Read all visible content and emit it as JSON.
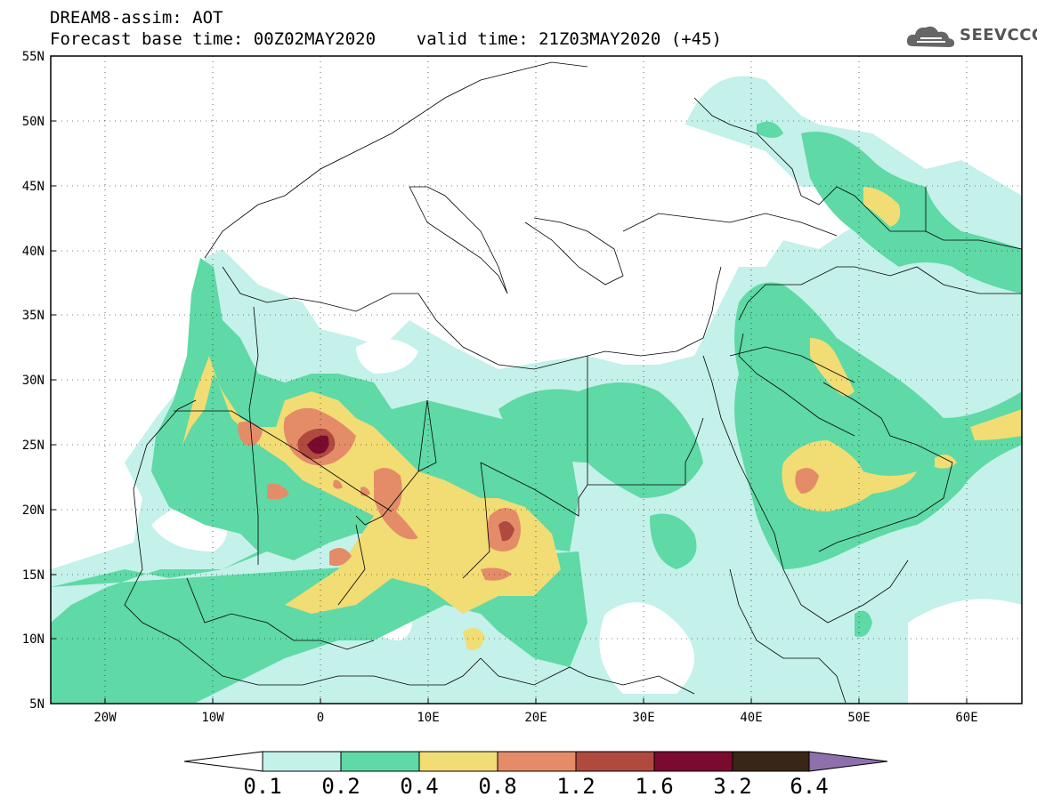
{
  "title": {
    "line1": "DREAM8-assim: AOT",
    "line2": "Forecast base time: 00Z02MAY2020    valid time: 21Z03MAY2020 (+45)"
  },
  "logo": {
    "text": "SEEVCCC",
    "icon": "cloud-icon"
  },
  "map": {
    "lon_range": [
      -25,
      65
    ],
    "lat_range": [
      5,
      55
    ],
    "lon_ticks": [
      "20W",
      "10W",
      "0",
      "10E",
      "20E",
      "30E",
      "40E",
      "50E",
      "60E"
    ],
    "lat_ticks": [
      "5N",
      "10N",
      "15N",
      "20N",
      "25N",
      "30N",
      "35N",
      "40N",
      "45N",
      "50N",
      "55N"
    ]
  },
  "colorbar": {
    "levels": [
      "0.1",
      "0.2",
      "0.4",
      "0.8",
      "1.2",
      "1.6",
      "3.2",
      "6.4"
    ],
    "colors": [
      "#c4f1ea",
      "#5fd9a5",
      "#f2dc74",
      "#e48c68",
      "#b04a3f",
      "#7a0a30",
      "#3a2616",
      "#8e70ad"
    ]
  }
}
